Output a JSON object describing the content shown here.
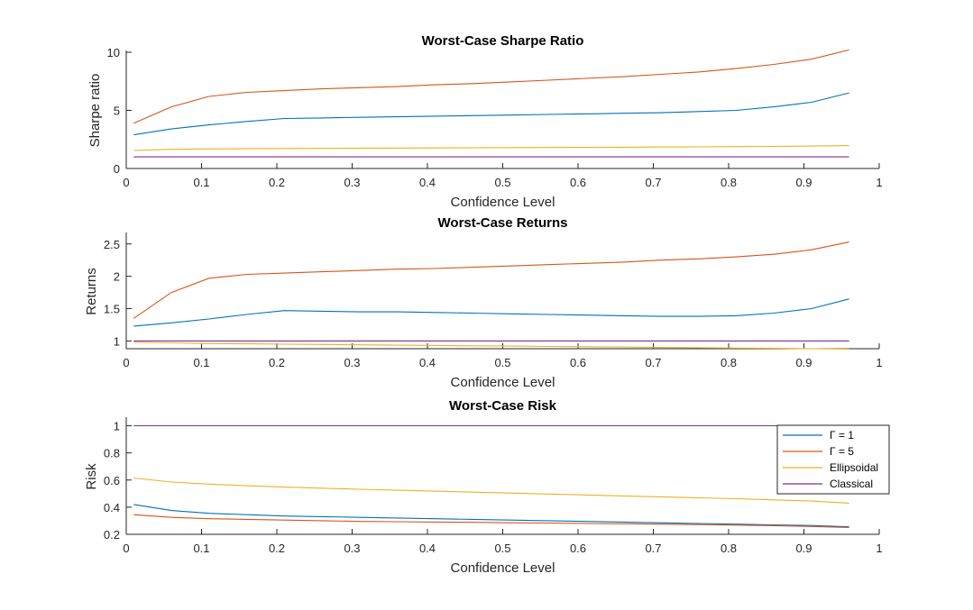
{
  "chart_data": [
    {
      "type": "line",
      "title": "Worst-Case Sharpe Ratio",
      "xlabel": "Confidence Level",
      "ylabel": "Sharpe ratio",
      "xlim": [
        0,
        1
      ],
      "ylim": [
        0,
        10
      ],
      "xticks": [
        0,
        0.1,
        0.2,
        0.3,
        0.4,
        0.5,
        0.6,
        0.7,
        0.8,
        0.9,
        1
      ],
      "xtick_labels": [
        "0",
        "0.1",
        "0.2",
        "0.3",
        "0.4",
        "0.5",
        "0.6",
        "0.7",
        "0.8",
        "0.9",
        "1"
      ],
      "yticks": [
        0,
        5,
        10
      ],
      "ytick_labels": [
        "0",
        "5",
        "10"
      ],
      "x": [
        0.01,
        0.06,
        0.11,
        0.16,
        0.21,
        0.26,
        0.31,
        0.36,
        0.41,
        0.46,
        0.51,
        0.56,
        0.61,
        0.66,
        0.71,
        0.76,
        0.81,
        0.86,
        0.91,
        0.96
      ],
      "series": [
        {
          "name": "Γ = 1",
          "color": "#0072BD",
          "values": [
            2.9,
            3.4,
            3.75,
            4.05,
            4.3,
            4.35,
            4.4,
            4.45,
            4.5,
            4.55,
            4.6,
            4.65,
            4.7,
            4.75,
            4.8,
            4.9,
            5.0,
            5.3,
            5.7,
            6.5
          ]
        },
        {
          "name": "Γ = 5",
          "color": "#D95319",
          "values": [
            3.9,
            5.3,
            6.2,
            6.55,
            6.7,
            6.85,
            6.95,
            7.05,
            7.2,
            7.3,
            7.45,
            7.6,
            7.75,
            7.9,
            8.1,
            8.3,
            8.6,
            8.95,
            9.4,
            10.2
          ]
        },
        {
          "name": "Ellipsoidal",
          "color": "#EDB120",
          "values": [
            1.55,
            1.65,
            1.68,
            1.7,
            1.72,
            1.73,
            1.75,
            1.76,
            1.77,
            1.78,
            1.8,
            1.81,
            1.82,
            1.83,
            1.85,
            1.86,
            1.88,
            1.9,
            1.93,
            1.97
          ]
        },
        {
          "name": "Classical",
          "color": "#7E2F8E",
          "values": [
            1,
            1,
            1,
            1,
            1,
            1,
            1,
            1,
            1,
            1,
            1,
            1,
            1,
            1,
            1,
            1,
            1,
            1,
            1,
            1
          ]
        }
      ]
    },
    {
      "type": "line",
      "title": "Worst-Case Returns",
      "xlabel": "Confidence Level",
      "ylabel": "Returns",
      "xlim": [
        0,
        1
      ],
      "ylim": [
        0.88,
        2.65
      ],
      "xticks": [
        0,
        0.1,
        0.2,
        0.3,
        0.4,
        0.5,
        0.6,
        0.7,
        0.8,
        0.9,
        1
      ],
      "xtick_labels": [
        "0",
        "0.1",
        "0.2",
        "0.3",
        "0.4",
        "0.5",
        "0.6",
        "0.7",
        "0.8",
        "0.9",
        "1"
      ],
      "yticks": [
        1,
        1.5,
        2,
        2.5
      ],
      "ytick_labels": [
        "1",
        "1.5",
        "2",
        "2.5"
      ],
      "x": [
        0.01,
        0.06,
        0.11,
        0.16,
        0.21,
        0.26,
        0.31,
        0.36,
        0.41,
        0.46,
        0.51,
        0.56,
        0.61,
        0.66,
        0.71,
        0.76,
        0.81,
        0.86,
        0.91,
        0.96
      ],
      "series": [
        {
          "name": "Γ = 1",
          "color": "#0072BD",
          "values": [
            1.23,
            1.28,
            1.34,
            1.41,
            1.47,
            1.46,
            1.45,
            1.45,
            1.44,
            1.43,
            1.42,
            1.41,
            1.4,
            1.39,
            1.38,
            1.38,
            1.39,
            1.43,
            1.5,
            1.65
          ]
        },
        {
          "name": "Γ = 5",
          "color": "#D95319",
          "values": [
            1.35,
            1.75,
            1.97,
            2.03,
            2.05,
            2.07,
            2.09,
            2.11,
            2.12,
            2.14,
            2.16,
            2.18,
            2.2,
            2.22,
            2.25,
            2.27,
            2.3,
            2.34,
            2.41,
            2.53
          ]
        },
        {
          "name": "Ellipsoidal",
          "color": "#EDB120",
          "values": [
            0.98,
            0.97,
            0.96,
            0.955,
            0.95,
            0.945,
            0.94,
            0.935,
            0.93,
            0.925,
            0.92,
            0.915,
            0.91,
            0.905,
            0.9,
            0.895,
            0.89,
            0.885,
            0.88,
            0.875
          ]
        },
        {
          "name": "Classical",
          "color": "#7E2F8E",
          "values": [
            1,
            1,
            1,
            1,
            1,
            1,
            1,
            1,
            1,
            1,
            1,
            1,
            1,
            1,
            1,
            1,
            1,
            1,
            1,
            1
          ]
        }
      ]
    },
    {
      "type": "line",
      "title": "Worst-Case Risk",
      "xlabel": "Confidence Level",
      "ylabel": "Risk",
      "xlim": [
        0,
        1
      ],
      "ylim": [
        0.2,
        1.05
      ],
      "xticks": [
        0,
        0.1,
        0.2,
        0.3,
        0.4,
        0.5,
        0.6,
        0.7,
        0.8,
        0.9,
        1
      ],
      "xtick_labels": [
        "0",
        "0.1",
        "0.2",
        "0.3",
        "0.4",
        "0.5",
        "0.6",
        "0.7",
        "0.8",
        "0.9",
        "1"
      ],
      "yticks": [
        0.2,
        0.4,
        0.6,
        0.8,
        1
      ],
      "ytick_labels": [
        "0.2",
        "0.4",
        "0.6",
        "0.8",
        "1"
      ],
      "legend_position": "top-right",
      "x": [
        0.01,
        0.06,
        0.11,
        0.16,
        0.21,
        0.26,
        0.31,
        0.36,
        0.41,
        0.46,
        0.51,
        0.56,
        0.61,
        0.66,
        0.71,
        0.76,
        0.81,
        0.86,
        0.91,
        0.96
      ],
      "series": [
        {
          "name": "Γ = 1",
          "color": "#0072BD",
          "values": [
            0.42,
            0.375,
            0.355,
            0.345,
            0.335,
            0.33,
            0.325,
            0.32,
            0.315,
            0.31,
            0.305,
            0.3,
            0.295,
            0.29,
            0.285,
            0.28,
            0.275,
            0.27,
            0.265,
            0.255
          ]
        },
        {
          "name": "Γ = 5",
          "color": "#D95319",
          "values": [
            0.345,
            0.325,
            0.315,
            0.31,
            0.305,
            0.3,
            0.295,
            0.293,
            0.29,
            0.288,
            0.285,
            0.283,
            0.28,
            0.278,
            0.275,
            0.272,
            0.268,
            0.264,
            0.258,
            0.25
          ]
        },
        {
          "name": "Ellipsoidal",
          "color": "#EDB120",
          "values": [
            0.615,
            0.585,
            0.57,
            0.558,
            0.548,
            0.54,
            0.532,
            0.525,
            0.518,
            0.511,
            0.504,
            0.497,
            0.49,
            0.483,
            0.476,
            0.469,
            0.462,
            0.454,
            0.445,
            0.43
          ]
        },
        {
          "name": "Classical",
          "color": "#7E2F8E",
          "values": [
            1,
            1,
            1,
            1,
            1,
            1,
            1,
            1,
            1,
            1,
            1,
            1,
            1,
            1,
            1,
            1,
            1,
            1,
            1,
            1
          ]
        }
      ]
    }
  ],
  "legend": {
    "items": [
      {
        "label": "Γ = 1",
        "color": "#0072BD"
      },
      {
        "label": "Γ = 5",
        "color": "#D95319"
      },
      {
        "label": "Ellipsoidal",
        "color": "#EDB120"
      },
      {
        "label": "Classical",
        "color": "#7E2F8E"
      }
    ]
  }
}
